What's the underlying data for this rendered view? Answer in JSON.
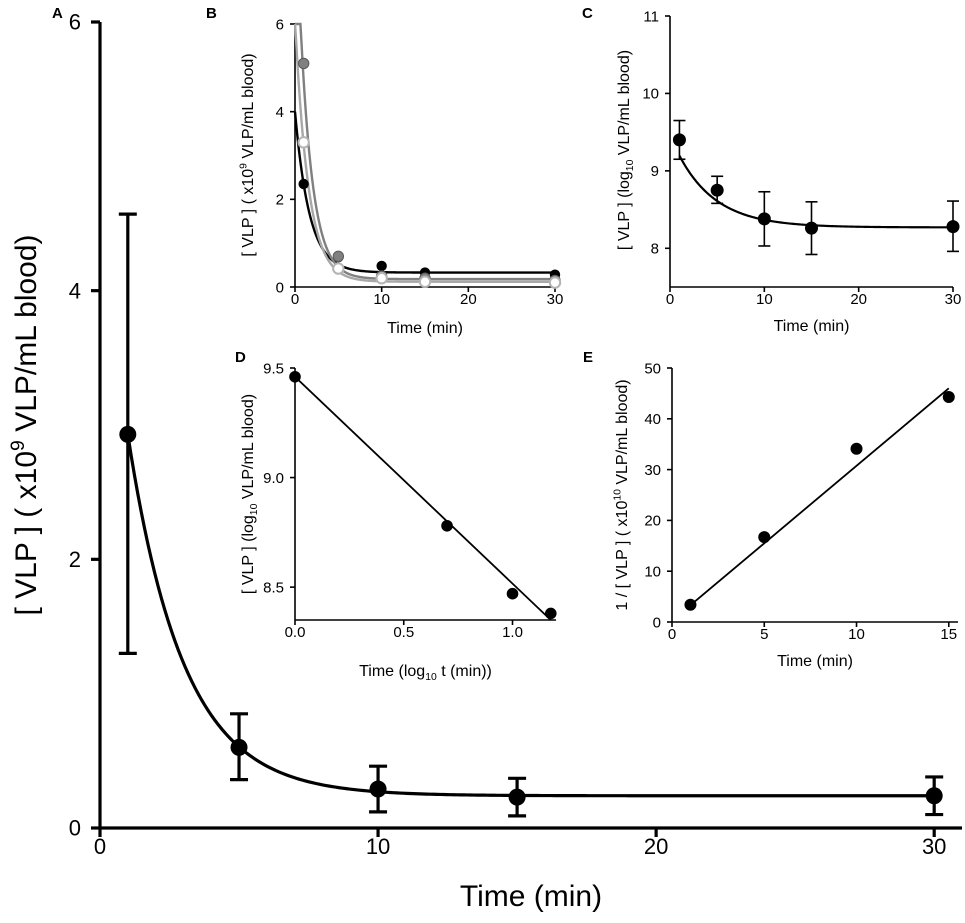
{
  "figure": {
    "panel_letters": [
      "A",
      "B",
      "C",
      "D",
      "E"
    ]
  },
  "colors": {
    "ink": "#000000",
    "dark_grey": "#808080",
    "light_grey": "#a8a8a8",
    "open_marker": "#b4b4b4"
  },
  "chart_data": [
    {
      "panel": "A",
      "type": "scatter",
      "title": "",
      "xlabel": "Time (min)",
      "ylabel_pre": "[ VLP ] ( x10",
      "ylabel_sup": "9",
      "ylabel_post": " VLP/mL blood)",
      "xlim": [
        0,
        31
      ],
      "ylim": [
        0,
        6
      ],
      "xticks": [
        0,
        10,
        20,
        30
      ],
      "yticks": [
        0,
        2,
        4,
        6
      ],
      "series": [
        {
          "name": "mean",
          "x": [
            1,
            5,
            10,
            15,
            30
          ],
          "y": [
            2.93,
            0.6,
            0.29,
            0.23,
            0.24
          ],
          "err_low": [
            1.3,
            0.36,
            0.12,
            0.09,
            0.1
          ],
          "err_high": [
            4.57,
            0.85,
            0.46,
            0.37,
            0.38
          ]
        }
      ],
      "fit": {
        "model": "exponential decay",
        "y0": 2.93,
        "plateau": 0.24,
        "k": 0.5,
        "x0": 1
      }
    },
    {
      "panel": "B",
      "type": "scatter",
      "xlabel": "Time (min)",
      "ylabel_pre": "[ VLP ] ( x10",
      "ylabel_sup": "9",
      "ylabel_post": " VLP/mL blood)",
      "xlim": [
        0,
        30
      ],
      "ylim": [
        0,
        6
      ],
      "xticks": [
        0,
        10,
        20,
        30
      ],
      "yticks": [
        0,
        2,
        4,
        6
      ],
      "series": [
        {
          "name": "individual 1 (black)",
          "x": [
            1,
            5,
            10,
            15,
            30
          ],
          "y": [
            2.35,
            0.68,
            0.48,
            0.33,
            0.28
          ],
          "fit": {
            "y0": 4.0,
            "plateau": 0.33,
            "k": 0.6
          }
        },
        {
          "name": "individual 2 (dark grey)",
          "x": [
            1,
            5,
            10,
            15,
            30
          ],
          "y": [
            5.1,
            0.7,
            0.25,
            0.2,
            0.15
          ],
          "fit": {
            "y0": 9.3,
            "plateau": 0.18,
            "k": 0.7
          }
        },
        {
          "name": "individual 3 (open grey)",
          "x": [
            1,
            5,
            10,
            15,
            30
          ],
          "y": [
            3.3,
            0.42,
            0.2,
            0.12,
            0.1
          ],
          "fit": {
            "y0": 6.1,
            "plateau": 0.12,
            "k": 0.65
          }
        }
      ]
    },
    {
      "panel": "C",
      "type": "scatter",
      "xlabel": "Time (min)",
      "ylabel_pre": "[ VLP ] (log",
      "ylabel_sub": "10",
      "ylabel_post": " VLP/mL blood)",
      "xlim": [
        0,
        30
      ],
      "ylim": [
        7.5,
        11
      ],
      "xticks": [
        0,
        10,
        20,
        30
      ],
      "yticks": [
        8,
        9,
        10,
        11
      ],
      "series": [
        {
          "name": "mean",
          "x": [
            1,
            5,
            10,
            15,
            30
          ],
          "y": [
            9.4,
            8.75,
            8.38,
            8.26,
            8.28
          ],
          "err_low": [
            9.15,
            8.58,
            8.03,
            7.92,
            7.96
          ],
          "err_high": [
            9.65,
            8.93,
            8.73,
            8.6,
            8.61
          ]
        }
      ],
      "fit": {
        "model": "exponential decay",
        "y0": 9.46,
        "plateau": 8.27,
        "k": 0.25,
        "x0": 0
      }
    },
    {
      "panel": "D",
      "type": "scatter",
      "xlabel_pre": "Time (log",
      "xlabel_sub": "10",
      "xlabel_post": " t (min))",
      "ylabel_pre": "[ VLP ] (log",
      "ylabel_sub": "10",
      "ylabel_post": " VLP/mL blood)",
      "xlim": [
        0,
        1.2
      ],
      "ylim": [
        8.35,
        9.5
      ],
      "xticks": [
        0.0,
        0.5,
        1.0
      ],
      "xticklabels": [
        "0.0",
        "0.5",
        "1.0"
      ],
      "yticks": [
        8.5,
        9.0,
        9.5
      ],
      "yticklabels": [
        "8.5",
        "9.0",
        "9.5"
      ],
      "series": [
        {
          "name": "mean",
          "x": [
            0.0,
            0.699,
            1.0,
            1.176
          ],
          "y": [
            9.46,
            8.78,
            8.47,
            8.38
          ]
        }
      ],
      "fit": {
        "model": "linear",
        "x": [
          0.0,
          1.176
        ],
        "y": [
          9.46,
          8.35
        ]
      }
    },
    {
      "panel": "E",
      "type": "scatter",
      "xlabel": "Time (min)",
      "ylabel_pre": "1 / [ VLP ] ( x10",
      "ylabel_sup": "10",
      "ylabel_post": " VLP/mL blood)",
      "xlim": [
        0,
        15.5
      ],
      "ylim": [
        0,
        50
      ],
      "xticks": [
        0,
        5,
        10,
        15
      ],
      "yticks": [
        0,
        10,
        20,
        30,
        40,
        50
      ],
      "series": [
        {
          "name": "mean",
          "x": [
            1,
            5,
            10,
            15
          ],
          "y": [
            3.4,
            16.7,
            34.1,
            44.3
          ]
        }
      ],
      "fit": {
        "model": "linear",
        "x": [
          1,
          15
        ],
        "y": [
          3.3,
          46.0
        ]
      }
    }
  ]
}
